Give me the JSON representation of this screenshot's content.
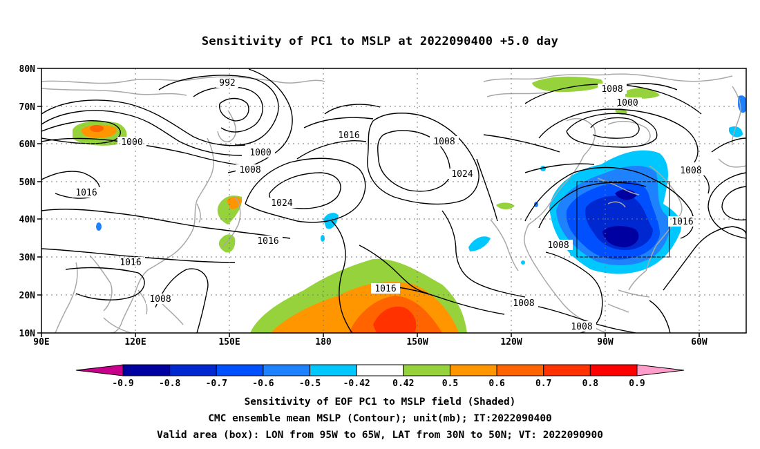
{
  "title": "Sensitivity of PC1 to MSLP at 2022090400 +5.0 day",
  "lat_labels": [
    "80N",
    "70N",
    "60N",
    "50N",
    "40N",
    "30N",
    "20N",
    "10N"
  ],
  "lon_labels": [
    "90E",
    "120E",
    "150E",
    "180",
    "150W",
    "120W",
    "90W",
    "60W"
  ],
  "contour_labels": [
    {
      "text": "992"
    },
    {
      "text": "1000"
    },
    {
      "text": "1000"
    },
    {
      "text": "1008"
    },
    {
      "text": "1016"
    },
    {
      "text": "1008"
    },
    {
      "text": "1024"
    },
    {
      "text": "1024"
    },
    {
      "text": "1016"
    },
    {
      "text": "1016"
    },
    {
      "text": "1016"
    },
    {
      "text": "1008"
    },
    {
      "text": "1016"
    },
    {
      "text": "1008"
    },
    {
      "text": "1008"
    },
    {
      "text": "1000"
    },
    {
      "text": "1008"
    },
    {
      "text": "1016"
    },
    {
      "text": "1008"
    },
    {
      "text": "1008"
    }
  ],
  "colorbar": {
    "labels": [
      "-0.9",
      "-0.8",
      "-0.7",
      "-0.6",
      "-0.5",
      "-0.42",
      "0.42",
      "0.5",
      "0.6",
      "0.7",
      "0.8",
      "0.9"
    ],
    "colors": [
      "#0000a0",
      "#0028d0",
      "#0050ff",
      "#1e82ff",
      "#00c8ff",
      "#ffffff",
      "#96d23c",
      "#ff9600",
      "#ff6400",
      "#ff3200",
      "#ff0000"
    ],
    "left_arrow": "#c8008c",
    "right_arrow": "#ff9ecb"
  },
  "captions": [
    "Sensitivity of EOF PC1 to MSLP field (Shaded)",
    "CMC ensemble mean MSLP (Contour); unit(mb); IT:2022090400",
    "Valid area (box): LON from 95W to 65W, LAT from 30N to 50N; VT: 2022090900"
  ]
}
